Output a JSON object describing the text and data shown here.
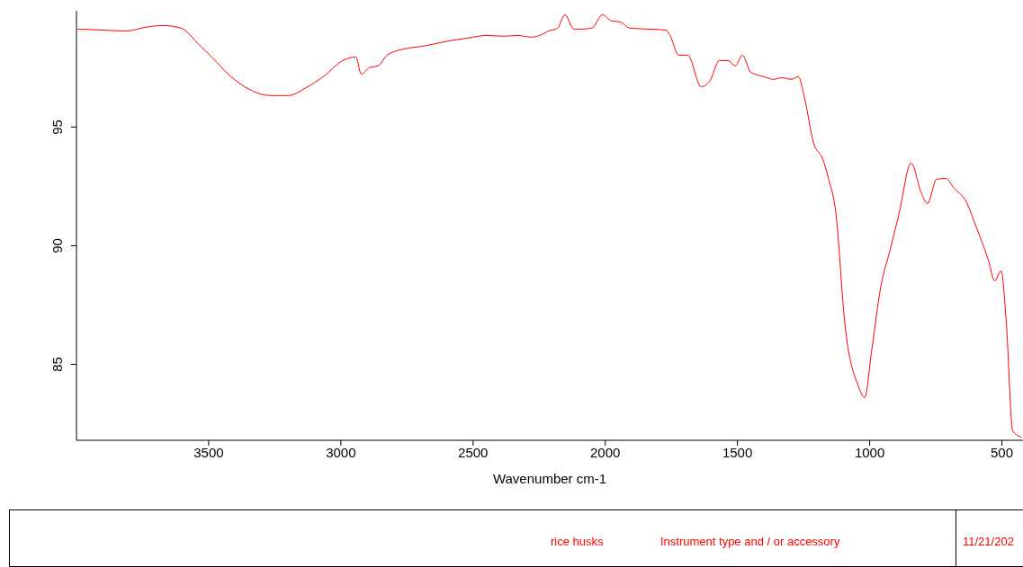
{
  "chart_data": {
    "type": "line",
    "xlabel": "Wavenumber cm-1",
    "x": [
      3996,
      3911,
      3809,
      3741,
      3673,
      3605,
      3537,
      3486,
      3419,
      3334,
      3266,
      3198,
      3130,
      3062,
      2994,
      2943,
      2923,
      2892,
      2859,
      2825,
      2757,
      2689,
      2587,
      2519,
      2451,
      2383,
      2332,
      2282,
      2248,
      2214,
      2180,
      2153,
      2119,
      2085,
      2051,
      2010,
      1976,
      1942,
      1909,
      1840,
      1772,
      1755,
      1722,
      1688,
      1637,
      1603,
      1569,
      1535,
      1508,
      1481,
      1450,
      1399,
      1365,
      1331,
      1297,
      1270,
      1246,
      1212,
      1178,
      1155,
      1128,
      1094,
      1043,
      1019,
      992,
      958,
      924,
      890,
      843,
      805,
      781,
      747,
      713,
      680,
      635,
      601,
      551,
      527,
      503,
      483,
      459,
      425
    ],
    "values": [
      99.13,
      99.09,
      99.05,
      99.2,
      99.28,
      99.17,
      98.48,
      97.92,
      97.16,
      96.52,
      96.33,
      96.33,
      96.67,
      97.16,
      97.8,
      97.95,
      97.23,
      97.5,
      97.58,
      98.03,
      98.3,
      98.41,
      98.64,
      98.75,
      98.86,
      98.83,
      98.86,
      98.79,
      98.86,
      99.05,
      99.17,
      99.74,
      99.13,
      99.13,
      99.17,
      99.74,
      99.47,
      99.43,
      99.17,
      99.13,
      99.09,
      98.86,
      98.03,
      98.03,
      96.7,
      96.97,
      97.8,
      97.8,
      97.58,
      98.03,
      97.31,
      97.12,
      97.01,
      97.08,
      97.01,
      97.12,
      96.21,
      94.32,
      93.67,
      92.8,
      91.4,
      86.74,
      84.09,
      83.6,
      85.61,
      88.26,
      89.77,
      91.29,
      93.48,
      92.23,
      91.78,
      92.8,
      92.84,
      92.42,
      91.86,
      90.91,
      89.39,
      88.52,
      88.94,
      86.74,
      82.2,
      81.93
    ],
    "color": "#ff0000",
    "xlim": [
      4000,
      420
    ],
    "xticks": [
      3500,
      3000,
      2500,
      2000,
      1500,
      1000,
      500
    ],
    "ylim": [
      81.8,
      99.9
    ],
    "yticks": [
      85,
      90,
      95
    ],
    "grid": false,
    "legend": false,
    "marker": "none",
    "line_style": "solid",
    "annotations": [
      "rice husks",
      "Instrument type and / or accessory",
      "11/21/202"
    ]
  }
}
